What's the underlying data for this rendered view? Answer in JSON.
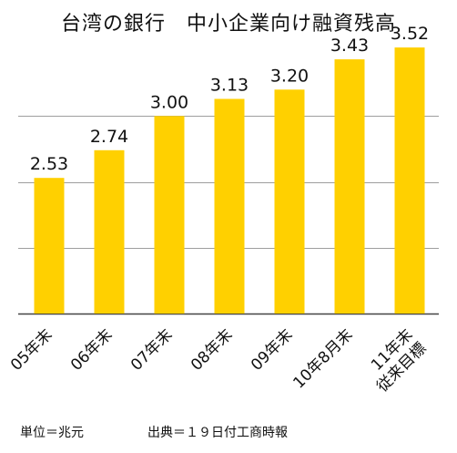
{
  "chart_data": {
    "type": "bar",
    "title": "台湾の銀行　中小企業向け融資残高",
    "categories": [
      [
        "05年末"
      ],
      [
        "06年末"
      ],
      [
        "07年末"
      ],
      [
        "08年末"
      ],
      [
        "09年末"
      ],
      [
        "10年8月末"
      ],
      [
        "11年末",
        "従来目標"
      ]
    ],
    "values": [
      2.53,
      2.74,
      3.0,
      3.13,
      3.2,
      3.43,
      3.52
    ],
    "value_labels": [
      "2.53",
      "2.74",
      "3.00",
      "3.13",
      "3.20",
      "3.43",
      "3.52"
    ],
    "ylim": [
      1.5,
      3.5
    ],
    "grid": true,
    "bar_color": "#FFD000",
    "grid_color": "#9E9E9E",
    "xlabel": "",
    "ylabel": ""
  },
  "footer": {
    "unit": "単位＝兆元",
    "source": "出典＝１９日付工商時報"
  }
}
